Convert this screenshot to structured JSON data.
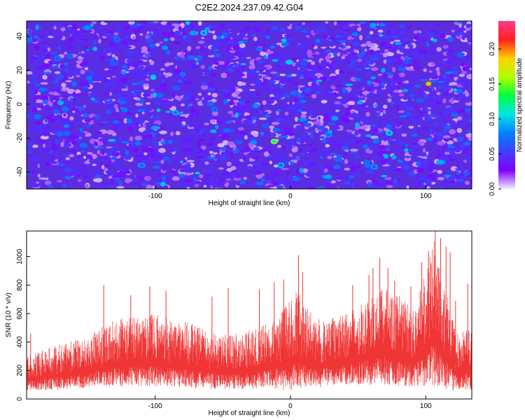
{
  "title": "C2E2.2024.237.09.42.G04",
  "chart_data": [
    {
      "type": "heatmap",
      "title": "C2E2.2024.237.09.42.G04",
      "xlabel": "Height of straight line (km)",
      "ylabel": "Frequency (Hz)",
      "xlim": [
        -195,
        134
      ],
      "ylim": [
        -50,
        49
      ],
      "xticks": [
        -100,
        0,
        100
      ],
      "yticks": [
        -40,
        -20,
        0,
        20,
        40
      ],
      "colorbar": {
        "label": "Normalized spectral amplitude",
        "range": [
          0,
          0.24
        ],
        "ticks": [
          "0.00",
          "0.05",
          "0.10",
          "0.15",
          "0.20"
        ],
        "colors": [
          "#eeeeff",
          "#8000ff",
          "#4040ff",
          "#0080ff",
          "#00e5e5",
          "#00ff40",
          "#b0ff00",
          "#ffd000",
          "#ff2020",
          "#ff3a8a"
        ]
      },
      "background_level": 0.03,
      "peaks": [
        {
          "x": 102,
          "y": 12,
          "value": 0.22
        },
        {
          "x": -12,
          "y": -22,
          "value": 0.17
        },
        {
          "x": 73,
          "y": -17,
          "value": 0.11
        },
        {
          "x": -64,
          "y": 42,
          "value": 0.11
        },
        {
          "x": -85,
          "y": -5,
          "value": 0.1
        },
        {
          "x": -7,
          "y": -36,
          "value": 0.1
        },
        {
          "x": 62,
          "y": -37,
          "value": 0.09
        },
        {
          "x": -110,
          "y": -36,
          "value": 0.09
        },
        {
          "x": 28,
          "y": -18,
          "value": 0.09
        },
        {
          "x": -128,
          "y": 38,
          "value": 0.08
        },
        {
          "x": -172,
          "y": 27,
          "value": 0.08
        },
        {
          "x": -56,
          "y": -3,
          "value": 0.08
        }
      ]
    },
    {
      "type": "line",
      "xlabel": "Height of straight line (km)",
      "ylabel": "SNR (10 * v/v)",
      "xlim": [
        -195,
        134
      ],
      "ylim": [
        0,
        1180
      ],
      "xticks": [
        -100,
        0,
        100
      ],
      "yticks": [
        0,
        200,
        400,
        600,
        800,
        1000
      ],
      "line_color": "#f03535",
      "envelope_x": [
        -195,
        -185,
        -165,
        -150,
        -140,
        -120,
        -100,
        -80,
        -60,
        -40,
        -25,
        -15,
        -5,
        0,
        5,
        10,
        20,
        30,
        40,
        55,
        70,
        80,
        90,
        100,
        105,
        110,
        115,
        120,
        125,
        134
      ],
      "envelope_min": [
        60,
        60,
        70,
        80,
        85,
        90,
        90,
        80,
        70,
        70,
        70,
        80,
        60,
        50,
        70,
        80,
        80,
        90,
        100,
        100,
        100,
        90,
        80,
        90,
        90,
        90,
        70,
        60,
        60,
        60
      ],
      "envelope_max": [
        300,
        340,
        400,
        430,
        520,
        580,
        600,
        560,
        480,
        460,
        500,
        540,
        640,
        700,
        780,
        660,
        560,
        570,
        600,
        700,
        800,
        750,
        650,
        880,
        1150,
        1000,
        760,
        560,
        450,
        540
      ],
      "peaks": [
        {
          "x": -192,
          "y": 460
        },
        {
          "x": -138,
          "y": 800
        },
        {
          "x": -118,
          "y": 730
        },
        {
          "x": -104,
          "y": 790
        },
        {
          "x": -92,
          "y": 760
        },
        {
          "x": -58,
          "y": 720
        },
        {
          "x": -46,
          "y": 780
        },
        {
          "x": -23,
          "y": 770
        },
        {
          "x": -12,
          "y": 820
        },
        {
          "x": -5,
          "y": 840
        },
        {
          "x": 6,
          "y": 1010
        },
        {
          "x": 9,
          "y": 890
        },
        {
          "x": 46,
          "y": 800
        },
        {
          "x": 58,
          "y": 870
        },
        {
          "x": 61,
          "y": 920
        },
        {
          "x": 66,
          "y": 990
        },
        {
          "x": 72,
          "y": 920
        },
        {
          "x": 77,
          "y": 830
        },
        {
          "x": 89,
          "y": 790
        },
        {
          "x": 97,
          "y": 960
        },
        {
          "x": 102,
          "y": 1040
        },
        {
          "x": 107,
          "y": 1180
        },
        {
          "x": 111,
          "y": 1130
        },
        {
          "x": 115,
          "y": 1070
        },
        {
          "x": 118,
          "y": 1030
        },
        {
          "x": 122,
          "y": 690
        },
        {
          "x": 131,
          "y": 810
        }
      ]
    }
  ]
}
